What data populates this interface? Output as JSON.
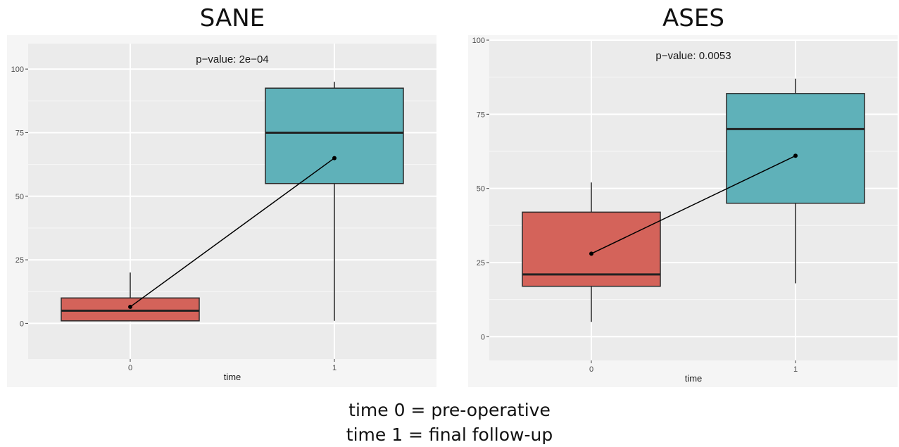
{
  "chart_data": [
    {
      "type": "box",
      "title": "SANE",
      "xlabel": "time",
      "ylabel": "",
      "annotation": "p−value:  2e−04",
      "ylim": [
        -14,
        110
      ],
      "yticks": [
        0,
        25,
        50,
        75,
        100
      ],
      "categories": [
        "0",
        "1"
      ],
      "boxes": [
        {
          "category": "0",
          "whisker_low": 1,
          "q1": 1,
          "median": 5,
          "q3": 10,
          "whisker_high": 20,
          "mean": 6.5,
          "color": "#d4635a"
        },
        {
          "category": "1",
          "whisker_low": 1,
          "q1": 55,
          "median": 75,
          "q3": 92.5,
          "whisker_high": 95,
          "mean": 65,
          "color": "#5fb1b9"
        }
      ],
      "grid": true
    },
    {
      "type": "box",
      "title": "ASES",
      "xlabel": "time",
      "ylabel": "",
      "annotation": "p−value:  0.0053",
      "ylim": [
        -8,
        100
      ],
      "yticks": [
        0,
        25,
        50,
        75,
        100
      ],
      "categories": [
        "0",
        "1"
      ],
      "boxes": [
        {
          "category": "0",
          "whisker_low": 5,
          "q1": 17,
          "median": 21,
          "q3": 42,
          "whisker_high": 52,
          "mean": 28,
          "color": "#d4635a"
        },
        {
          "category": "1",
          "whisker_low": 18,
          "q1": 45,
          "median": 70,
          "q3": 82,
          "whisker_high": 87,
          "mean": 61,
          "color": "#5fb1b9"
        }
      ],
      "grid": true
    }
  ],
  "caption": {
    "line1": "time 0 = pre-operative",
    "line2": "time 1 = final follow-up"
  }
}
